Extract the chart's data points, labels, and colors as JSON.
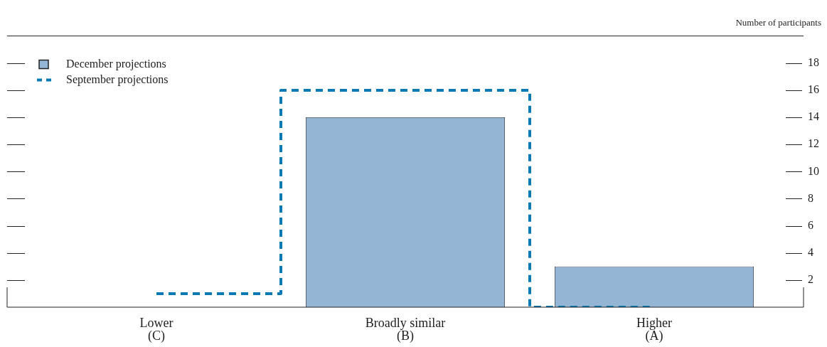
{
  "chart_data": {
    "type": "bar",
    "ylabel": "Number of participants",
    "categories": [
      "Lower\n(C)",
      "Broadly similar\n(B)",
      "Higher\n(A)"
    ],
    "series": [
      {
        "name": "December projections",
        "color": "#95b5d5",
        "values": [
          0,
          14,
          3
        ]
      },
      {
        "name": "September projections",
        "type": "step",
        "color": "#0a7ab5",
        "values": [
          1,
          16,
          0
        ],
        "line_style": "dashed"
      }
    ],
    "ylim": [
      0,
      20
    ],
    "yticks": [
      2,
      4,
      6,
      8,
      10,
      12,
      14,
      16,
      18
    ],
    "grid": false,
    "legend": "top left"
  }
}
